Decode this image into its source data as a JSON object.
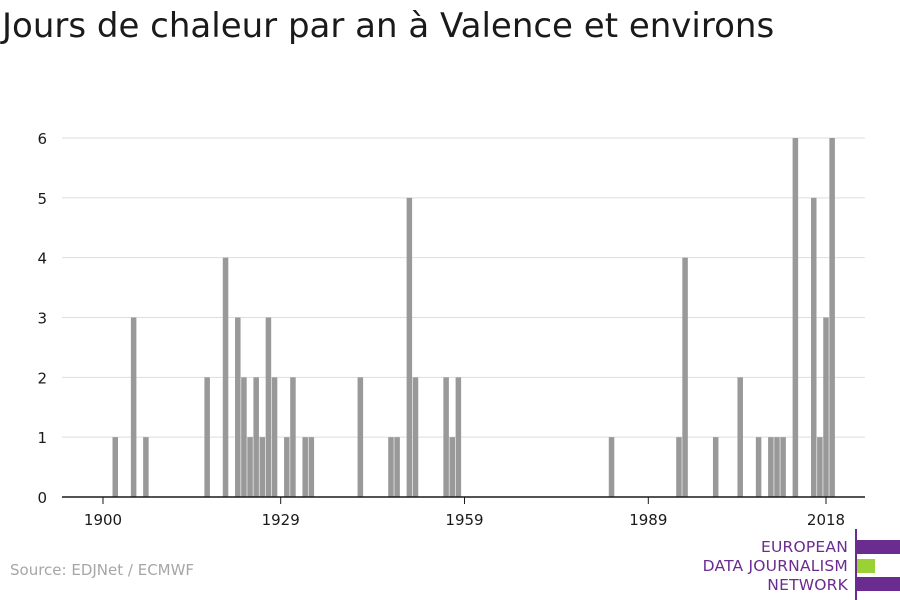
{
  "chart_data": {
    "type": "bar",
    "title": "Jours de chaleur par an à Valence et environs",
    "xlabel": "",
    "ylabel": "",
    "ylim": [
      0,
      6
    ],
    "xlim": [
      1894,
      2024
    ],
    "yticks": [
      0,
      1,
      2,
      3,
      4,
      5,
      6
    ],
    "xticks": [
      1900,
      1929,
      1959,
      1989,
      2018
    ],
    "grid": true,
    "bar_color": "#999999",
    "x": [
      1902,
      1905,
      1907,
      1917,
      1920,
      1922,
      1923,
      1924,
      1925,
      1926,
      1927,
      1928,
      1930,
      1931,
      1933,
      1934,
      1942,
      1947,
      1948,
      1950,
      1951,
      1956,
      1957,
      1958,
      1983,
      1994,
      1995,
      2000,
      2004,
      2007,
      2009,
      2010,
      2011,
      2013,
      2016,
      2017,
      2018,
      2019
    ],
    "values": [
      1,
      3,
      1,
      2,
      4,
      3,
      2,
      1,
      2,
      1,
      3,
      2,
      1,
      2,
      1,
      1,
      2,
      1,
      1,
      5,
      2,
      2,
      1,
      2,
      1,
      1,
      4,
      1,
      2,
      1,
      1,
      1,
      1,
      6,
      5,
      1,
      3,
      6
    ]
  },
  "source": "Source: EDJNet / ECMWF",
  "logo": {
    "lines": [
      "EUROPEAN",
      "DATA JOURNALISM",
      "NETWORK"
    ],
    "colors": {
      "purple": "#6b2c8f",
      "green": "#9ad235"
    }
  }
}
